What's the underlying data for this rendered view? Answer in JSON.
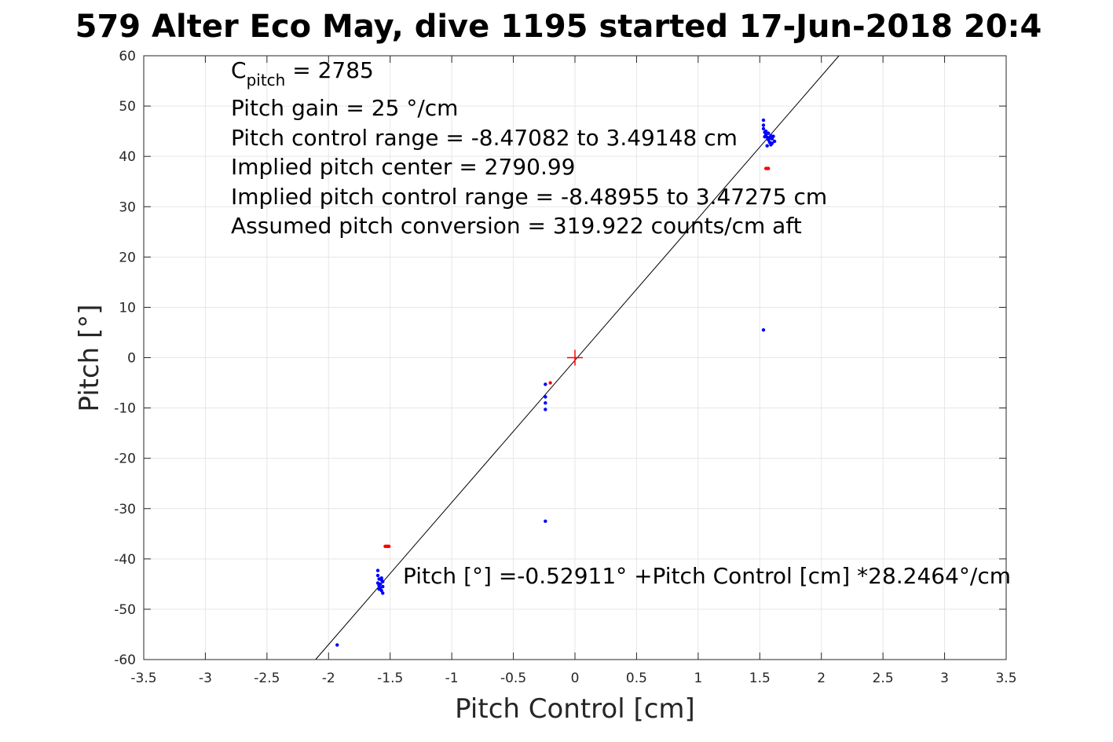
{
  "chart_data": {
    "type": "scatter",
    "title": "579 Alter Eco May, dive 1195 started 17-Jun-2018 20:4",
    "xlabel": "Pitch Control [cm]",
    "ylabel": "Pitch [°]",
    "xlim": [
      -3.5,
      3.5
    ],
    "ylim": [
      -60,
      60
    ],
    "xticks": [
      -3.5,
      -3,
      -2.5,
      -2,
      -1.5,
      -1,
      -0.5,
      0,
      0.5,
      1,
      1.5,
      2,
      2.5,
      3,
      3.5
    ],
    "xtick_labels": [
      "-3.5",
      "-3",
      "-2.5",
      "-2",
      "-1.5",
      "-1",
      "-0.5",
      "0",
      "0.5",
      "1",
      "1.5",
      "2",
      "2.5",
      "3",
      "3.5"
    ],
    "yticks": [
      -60,
      -50,
      -40,
      -30,
      -20,
      -10,
      0,
      10,
      20,
      30,
      40,
      50,
      60
    ],
    "ytick_labels": [
      "-60",
      "-50",
      "-40",
      "-30",
      "-20",
      "-10",
      "0",
      "10",
      "20",
      "30",
      "40",
      "50",
      "60"
    ],
    "grid": true,
    "colors": {
      "blue_points": "#0000ff",
      "red_points": "#ff0000",
      "fit_line": "#000000",
      "center_marker": "#ff0000",
      "grid": "#e6e6e6",
      "axes": "#262626"
    },
    "series": [
      {
        "marker": "dot",
        "color": "#0000ff",
        "points": [
          [
            1.53,
            47.2
          ],
          [
            1.53,
            46.2
          ],
          [
            1.53,
            45.5
          ],
          [
            1.54,
            44.8
          ],
          [
            1.55,
            44.3
          ],
          [
            1.56,
            43.8
          ],
          [
            1.57,
            43.3
          ],
          [
            1.58,
            42.8
          ],
          [
            1.59,
            42.3
          ],
          [
            1.56,
            42.1
          ],
          [
            1.6,
            43.5
          ],
          [
            1.61,
            44.0
          ],
          [
            1.62,
            43.0
          ],
          [
            1.55,
            45.0
          ],
          [
            1.54,
            43.9
          ],
          [
            1.57,
            44.6
          ],
          [
            1.59,
            44.1
          ],
          [
            1.6,
            42.6
          ],
          [
            1.58,
            43.6
          ],
          [
            1.53,
            5.5
          ],
          [
            -0.24,
            -5.3
          ],
          [
            -0.24,
            -7.8
          ],
          [
            -0.24,
            -9.0
          ],
          [
            -0.24,
            -10.3
          ],
          [
            -0.24,
            -32.5
          ],
          [
            -1.6,
            -42.3
          ],
          [
            -1.6,
            -43.3
          ],
          [
            -1.59,
            -44.0
          ],
          [
            -1.6,
            -44.8
          ],
          [
            -1.59,
            -45.3
          ],
          [
            -1.58,
            -45.8
          ],
          [
            -1.57,
            -46.3
          ],
          [
            -1.56,
            -46.8
          ],
          [
            -1.56,
            -44.5
          ],
          [
            -1.57,
            -43.8
          ],
          [
            -1.58,
            -45.0
          ],
          [
            -1.59,
            -46.0
          ],
          [
            -1.56,
            -45.5
          ],
          [
            -1.57,
            -44.2
          ],
          [
            -1.93,
            -57.1
          ]
        ]
      },
      {
        "marker": "dot",
        "color": "#ff0000",
        "points": [
          [
            1.55,
            37.6
          ],
          [
            1.56,
            37.6
          ],
          [
            1.57,
            37.6
          ],
          [
            -0.2,
            -5.0
          ],
          [
            -1.54,
            -37.5
          ],
          [
            -1.53,
            -37.5
          ],
          [
            -1.52,
            -37.5
          ],
          [
            -1.51,
            -37.5
          ]
        ]
      }
    ],
    "fit_line": {
      "intercept": -0.52911,
      "slope": 28.2464
    },
    "center_marker": {
      "x": 0,
      "y": 0,
      "marker": "+"
    },
    "annotations": {
      "cpitch_main": "C",
      "cpitch_sub": "pitch",
      "cpitch_value": " = 2785",
      "gain": "Pitch gain = 25 °/cm",
      "control_range": "Pitch control range = -8.47082 to 3.49148 cm",
      "implied_center": "Implied pitch center = 2790.99",
      "implied_range": "Implied pitch control range = -8.48955 to 3.47275 cm",
      "conversion": "Assumed pitch conversion = 319.922 counts/cm aft",
      "fit_equation": "Pitch [°] =-0.52911° +Pitch Control [cm] *28.2464°/cm"
    }
  }
}
